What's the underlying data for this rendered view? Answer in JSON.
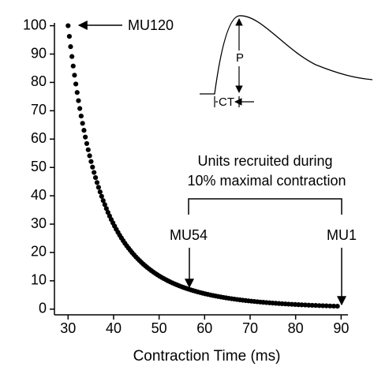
{
  "chart_data": {
    "type": "scatter",
    "x_label": "Contraction Time (ms)",
    "annotations": [
      "MU120",
      "Units recruited during",
      "10% maximal contraction",
      "MU54",
      "MU1"
    ],
    "inset_labels": [
      "P",
      "CT"
    ],
    "color": "#000000",
    "xlim": [
      27,
      91.5
    ],
    "ylim": [
      -2,
      101
    ],
    "xticks": [
      30,
      40,
      50,
      60,
      70,
      80,
      90
    ],
    "yticks": [
      0,
      10,
      20,
      30,
      40,
      50,
      60,
      70,
      80,
      90,
      100
    ],
    "x": [
      89.18,
      88.37,
      87.56,
      86.76,
      85.97,
      85.19,
      84.41,
      83.64,
      82.88,
      82.12,
      81.37,
      80.63,
      79.9,
      79.17,
      78.45,
      77.74,
      77.03,
      76.33,
      75.63,
      74.94,
      74.26,
      73.58,
      72.91,
      72.25,
      71.59,
      70.94,
      70.29,
      69.65,
      69.02,
      68.38,
      67.76,
      67.14,
      66.53,
      65.92,
      65.32,
      64.72,
      64.13,
      63.55,
      62.97,
      62.4,
      61.83,
      61.27,
      60.71,
      60.16,
      59.61,
      59.07,
      58.53,
      58.0,
      57.47,
      56.94,
      56.42,
      55.91,
      55.4,
      54.9,
      54.4,
      53.9,
      53.41,
      52.92,
      52.44,
      51.96,
      51.49,
      51.02,
      50.55,
      50.09,
      49.63,
      49.18,
      48.73,
      48.29,
      47.85,
      47.41,
      46.98,
      46.55,
      46.13,
      45.71,
      45.29,
      44.88,
      44.47,
      44.07,
      43.67,
      43.27,
      42.87,
      42.48,
      42.09,
      41.71,
      41.33,
      40.96,
      40.58,
      40.21,
      39.85,
      39.48,
      39.12,
      38.76,
      38.41,
      38.06,
      37.71,
      37.37,
      37.03,
      36.69,
      36.36,
      36.03,
      35.7,
      35.37,
      35.05,
      34.73,
      34.42,
      34.1,
      33.79,
      33.49,
      33.18,
      32.87,
      32.57,
      32.28,
      31.99,
      31.7,
      31.41,
      31.12,
      30.84,
      30.55,
      30.28,
      30.0
    ],
    "values": [
      1.04,
      1.08,
      1.12,
      1.17,
      1.21,
      1.26,
      1.31,
      1.36,
      1.41,
      1.47,
      1.53,
      1.58,
      1.65,
      1.71,
      1.78,
      1.85,
      1.92,
      2.0,
      2.07,
      2.15,
      2.24,
      2.32,
      2.42,
      2.51,
      2.61,
      2.71,
      2.82,
      2.93,
      3.04,
      3.16,
      3.28,
      3.41,
      3.55,
      3.69,
      3.83,
      3.98,
      4.14,
      4.3,
      4.47,
      4.64,
      4.82,
      5.01,
      5.21,
      5.41,
      5.62,
      5.84,
      6.07,
      6.31,
      6.55,
      6.81,
      7.08,
      7.36,
      7.64,
      7.94,
      8.25,
      8.58,
      8.91,
      9.26,
      9.62,
      10.0,
      10.39,
      10.8,
      11.22,
      11.66,
      12.12,
      12.59,
      13.09,
      13.6,
      14.13,
      14.68,
      15.26,
      15.85,
      16.47,
      17.11,
      17.78,
      18.48,
      19.2,
      19.95,
      20.73,
      21.54,
      22.39,
      23.26,
      24.17,
      25.12,
      26.1,
      27.12,
      28.18,
      29.29,
      30.43,
      31.62,
      32.86,
      34.15,
      35.48,
      36.87,
      38.31,
      39.81,
      41.37,
      42.99,
      44.67,
      46.42,
      48.23,
      50.12,
      52.08,
      54.12,
      56.23,
      58.43,
      60.71,
      63.1,
      65.56,
      68.13,
      70.79,
      73.56,
      76.44,
      79.43,
      82.54,
      85.77,
      89.13,
      92.61,
      96.24,
      100
    ]
  }
}
